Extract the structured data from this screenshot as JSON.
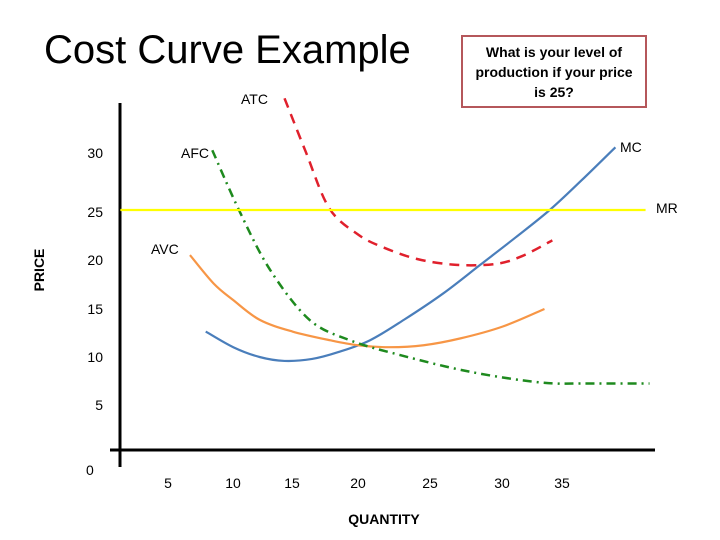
{
  "slide": {
    "title": "Cost Curve Example",
    "question": "What is your level of production if your price is 25?"
  },
  "chart_data": {
    "type": "line",
    "title": "",
    "xlabel": "QUANTITY",
    "ylabel": "PRICE",
    "x_ticks": [
      5,
      10,
      15,
      20,
      25,
      30,
      35
    ],
    "y_ticks": [
      5,
      10,
      15,
      20,
      25,
      30
    ],
    "origin_label": "0",
    "xlim": [
      0,
      42
    ],
    "ylim": [
      0,
      36
    ],
    "grid": false,
    "series": [
      {
        "name": "MC",
        "color": "#4a7ebb",
        "style": "solid",
        "points": [
          [
            7.9,
            12.6
          ],
          [
            10,
            11
          ],
          [
            12,
            10
          ],
          [
            13.9,
            9.6
          ],
          [
            16,
            9.8
          ],
          [
            18,
            10.5
          ],
          [
            20.4,
            11.7
          ],
          [
            23,
            13.8
          ],
          [
            26,
            16.5
          ],
          [
            28.8,
            19.4
          ],
          [
            31.5,
            22.2
          ],
          [
            34.1,
            25
          ],
          [
            36.5,
            28
          ],
          [
            39.1,
            31.4
          ]
        ]
      },
      {
        "name": "AVC",
        "color": "#f79646",
        "style": "solid",
        "points": [
          [
            6.7,
            20.4
          ],
          [
            8.5,
            17.5
          ],
          [
            10,
            15.8
          ],
          [
            12,
            13.8
          ],
          [
            14.5,
            12.6
          ],
          [
            17.4,
            11.7
          ],
          [
            19.5,
            11.2
          ],
          [
            21.9,
            11
          ],
          [
            24.5,
            11.2
          ],
          [
            27.3,
            11.9
          ],
          [
            30.5,
            13.1
          ],
          [
            33.7,
            14.9
          ]
        ]
      },
      {
        "name": "ATC",
        "color": "#e0202c",
        "style": "dashed",
        "points": [
          [
            13.9,
            36.4
          ],
          [
            15.5,
            31
          ],
          [
            17.3,
            25.2
          ],
          [
            19.5,
            22.5
          ],
          [
            21.4,
            21.2
          ],
          [
            24,
            20
          ],
          [
            27,
            19.4
          ],
          [
            30,
            19.5
          ],
          [
            32,
            20.3
          ],
          [
            34.3,
            21.9
          ]
        ]
      },
      {
        "name": "AFC",
        "color": "#1e8a1e",
        "style": "dash-dot",
        "points": [
          [
            8.4,
            31.1
          ],
          [
            10.5,
            24.8
          ],
          [
            12.8,
            18.9
          ],
          [
            15.8,
            13.8
          ],
          [
            18.9,
            11.7
          ],
          [
            22.7,
            10.2
          ],
          [
            28,
            8.5
          ],
          [
            33.4,
            7.4
          ],
          [
            37,
            7.3
          ],
          [
            41.7,
            7.3
          ]
        ]
      },
      {
        "name": "MR",
        "color": "#ffff00",
        "style": "solid",
        "points": [
          [
            1.4,
            25
          ],
          [
            41.4,
            25
          ]
        ]
      }
    ]
  }
}
